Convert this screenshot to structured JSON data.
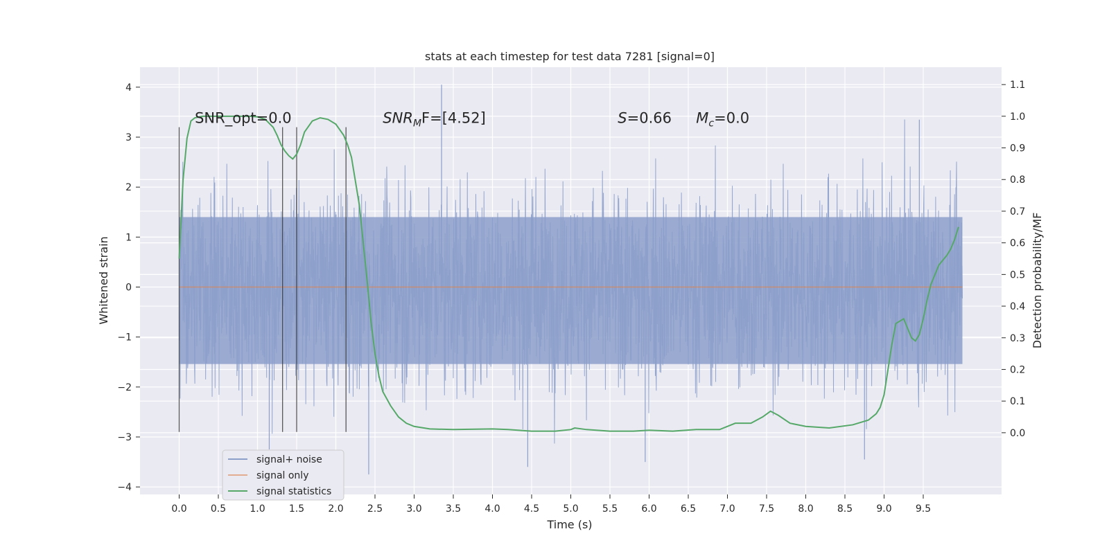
{
  "chart_data": {
    "type": "line",
    "title": "stats at each timestep for test data 7281 [signal=0]",
    "xlabel": "Time (s)",
    "ylabel_left": "Whitened strain",
    "ylabel_right": "Detection probability/MF",
    "xlim": [
      -0.5,
      10.5
    ],
    "ylim_left": [
      -4.15,
      4.4
    ],
    "ylim_right": [
      -0.195,
      1.155
    ],
    "xticks": [
      0.0,
      0.5,
      1.0,
      1.5,
      2.0,
      2.5,
      3.0,
      3.5,
      4.0,
      4.5,
      5.0,
      5.5,
      6.0,
      6.5,
      7.0,
      7.5,
      8.0,
      8.5,
      9.0,
      9.5
    ],
    "xtick_labels": [
      "0.0",
      "0.5",
      "1.0",
      "1.5",
      "2.0",
      "2.5",
      "3.0",
      "3.5",
      "4.0",
      "4.5",
      "5.0",
      "5.5",
      "6.0",
      "6.5",
      "7.0",
      "7.5",
      "8.0",
      "8.5",
      "9.0",
      "9.5"
    ],
    "yticks_left": [
      -4,
      -3,
      -2,
      -1,
      0,
      1,
      2,
      3,
      4
    ],
    "yticks_left_labels": [
      "−4",
      "−3",
      "−2",
      "−1",
      "0",
      "1",
      "2",
      "3",
      "4"
    ],
    "yticks_right": [
      0.0,
      0.1,
      0.2,
      0.3,
      0.4,
      0.5,
      0.6,
      0.7,
      0.8,
      0.9,
      1.0,
      1.1
    ],
    "yticks_right_labels": [
      "0.0",
      "0.1",
      "0.2",
      "0.3",
      "0.4",
      "0.5",
      "0.6",
      "0.7",
      "0.8",
      "0.9",
      "1.0",
      "1.1"
    ],
    "grid": true,
    "legend_position": "lower-left",
    "series": [
      {
        "name": "signal+ noise",
        "kind": "noise-band",
        "color": "#8c9fca",
        "x_range": [
          0.0,
          10.0
        ],
        "typical_amplitude": 1.4,
        "max": 4.05,
        "min": -3.75
      },
      {
        "name": "signal only",
        "kind": "line",
        "color": "#dd8452",
        "x": [
          0.0,
          10.0
        ],
        "y": [
          0.0,
          0.0
        ]
      },
      {
        "name": "signal statistics",
        "kind": "line",
        "axis": "right",
        "color": "#55a868",
        "x": [
          0.0,
          0.05,
          0.1,
          0.15,
          0.2,
          0.3,
          0.5,
          0.7,
          0.9,
          1.0,
          1.1,
          1.2,
          1.25,
          1.3,
          1.35,
          1.4,
          1.45,
          1.5,
          1.55,
          1.6,
          1.7,
          1.8,
          1.9,
          2.0,
          2.1,
          2.15,
          2.2,
          2.3,
          2.35,
          2.4,
          2.45,
          2.5,
          2.55,
          2.6,
          2.7,
          2.8,
          2.9,
          3.0,
          3.2,
          3.5,
          4.0,
          4.2,
          4.5,
          4.8,
          5.0,
          5.05,
          5.2,
          5.5,
          5.8,
          6.0,
          6.3,
          6.6,
          6.9,
          7.1,
          7.3,
          7.45,
          7.55,
          7.65,
          7.8,
          8.0,
          8.3,
          8.6,
          8.8,
          8.9,
          8.95,
          9.0,
          9.05,
          9.1,
          9.15,
          9.25,
          9.35,
          9.4,
          9.45,
          9.5,
          9.55,
          9.6,
          9.7,
          9.8,
          9.85,
          9.9,
          9.95
        ],
        "y": [
          0.55,
          0.8,
          0.93,
          0.985,
          0.995,
          1.0,
          1.0,
          1.0,
          1.0,
          0.998,
          0.99,
          0.965,
          0.94,
          0.91,
          0.89,
          0.875,
          0.865,
          0.88,
          0.91,
          0.95,
          0.985,
          0.995,
          0.99,
          0.975,
          0.94,
          0.91,
          0.87,
          0.72,
          0.6,
          0.48,
          0.35,
          0.25,
          0.18,
          0.13,
          0.085,
          0.05,
          0.03,
          0.02,
          0.012,
          0.01,
          0.012,
          0.01,
          0.005,
          0.005,
          0.01,
          0.015,
          0.01,
          0.005,
          0.005,
          0.008,
          0.005,
          0.01,
          0.01,
          0.03,
          0.03,
          0.05,
          0.068,
          0.055,
          0.03,
          0.02,
          0.015,
          0.025,
          0.04,
          0.06,
          0.08,
          0.12,
          0.2,
          0.28,
          0.345,
          0.36,
          0.3,
          0.29,
          0.31,
          0.36,
          0.42,
          0.47,
          0.53,
          0.56,
          0.58,
          0.61,
          0.65
        ]
      }
    ],
    "markers": {
      "kind": "vertical-lines",
      "color": "#333333",
      "x": [
        0.0,
        1.32,
        1.5,
        2.13
      ],
      "y_range": [
        -2.9,
        3.2
      ]
    },
    "annotations": [
      {
        "text": "SNR_opt=0.0",
        "x": 0.2,
        "y": 3.2
      },
      {
        "text": "SNR",
        "sub": "M",
        "rest": "F=[4.52]",
        "x": 2.6,
        "y": 3.2
      },
      {
        "text": "S",
        "rest": "=0.66",
        "x": 5.6,
        "y": 3.2
      },
      {
        "text": "M",
        "sub": "c",
        "rest": "=0.0",
        "x": 6.6,
        "y": 3.2
      }
    ]
  }
}
